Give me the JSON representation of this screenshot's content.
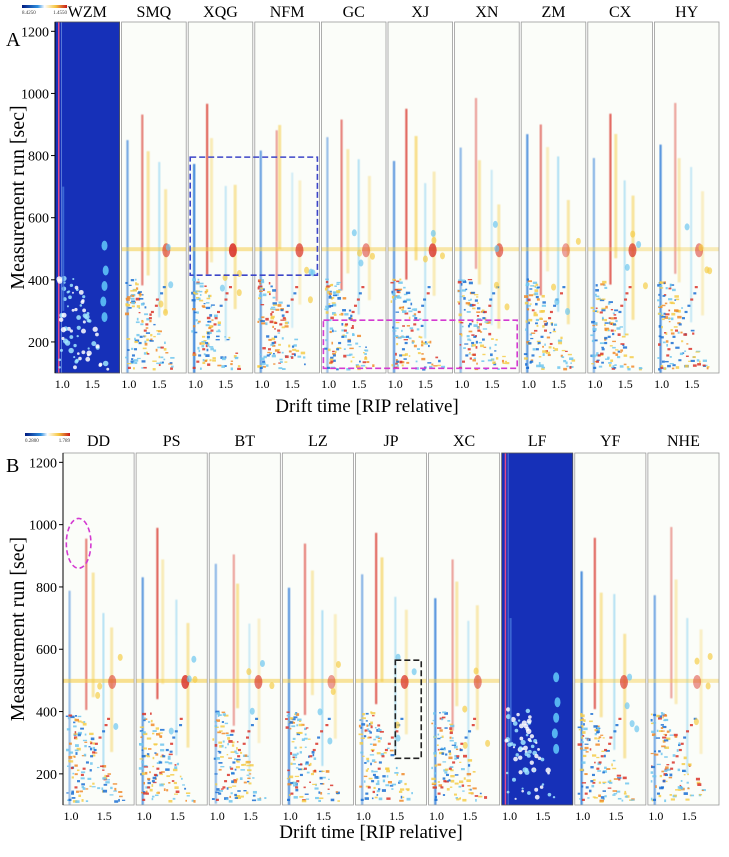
{
  "colors": {
    "reference_panel": "#1630b8",
    "background": "#fbfdf9",
    "increase": "#d9342a",
    "increase_weak": "#f5cd4a",
    "decrease": "#1a6fd4",
    "decrease_weak": "#6ec6ef",
    "box_blue": "#3c45c8",
    "box_magenta": "#d43ad1",
    "box_black": "#222222",
    "colorbar_low": "#002a9c",
    "colorbar_high": "#d01c1c"
  },
  "chart_data": [
    {
      "type": "heatmap",
      "panel_label": "A",
      "title": "",
      "xlabel": "Drift time [RIP relative]",
      "ylabel": "Measurement  run [sec]",
      "ylim": [
        100,
        1230
      ],
      "yticks": [
        200,
        400,
        600,
        800,
        1000,
        1200
      ],
      "xlim": [
        0.88,
        1.95
      ],
      "xticks": [
        1.0,
        1.5
      ],
      "xtick_labels": [
        "1.0",
        "1.5"
      ],
      "colorbar": {
        "min_label": "8.4250",
        "max_label": "1.4550"
      },
      "reference_sample": "WZM",
      "samples": [
        "WZM",
        "SMQ",
        "XQG",
        "NFM",
        "GC",
        "XJ",
        "XN",
        "ZM",
        "CX",
        "HY"
      ],
      "annotations": [
        {
          "shape": "rect",
          "color": "blue",
          "from_sample": "XQG",
          "to_sample": "NFM",
          "y_from": 415,
          "y_to": 795
        },
        {
          "shape": "rect",
          "color": "magenta",
          "from_sample": "GC",
          "to_sample": "XN",
          "y_from": 115,
          "y_to": 270
        }
      ]
    },
    {
      "type": "heatmap",
      "panel_label": "B",
      "title": "",
      "xlabel": "Drift time [RIP relative]",
      "ylabel": "Measurement  run [sec]",
      "ylim": [
        100,
        1230
      ],
      "yticks": [
        200,
        400,
        600,
        800,
        1000,
        1200
      ],
      "xlim": [
        0.88,
        1.95
      ],
      "xticks": [
        1.0,
        1.5
      ],
      "xtick_labels": [
        "1.0",
        "1.5"
      ],
      "colorbar": {
        "min_label": "0.2800",
        "max_label": "1.789"
      },
      "reference_sample": "LF",
      "samples": [
        "DD",
        "PS",
        "BT",
        "LZ",
        "JP",
        "XC",
        "LF",
        "YF",
        "NHE"
      ],
      "annotations": [
        {
          "shape": "ellipse",
          "color": "magenta",
          "from_sample": "DD",
          "to_sample": "DD",
          "x_from": 0.93,
          "x_to": 1.3,
          "y_from": 860,
          "y_to": 1020
        },
        {
          "shape": "rect",
          "color": "black",
          "from_sample": "JP",
          "to_sample": "JP",
          "x_from": 1.48,
          "x_to": 1.87,
          "y_from": 250,
          "y_to": 565
        }
      ]
    }
  ]
}
